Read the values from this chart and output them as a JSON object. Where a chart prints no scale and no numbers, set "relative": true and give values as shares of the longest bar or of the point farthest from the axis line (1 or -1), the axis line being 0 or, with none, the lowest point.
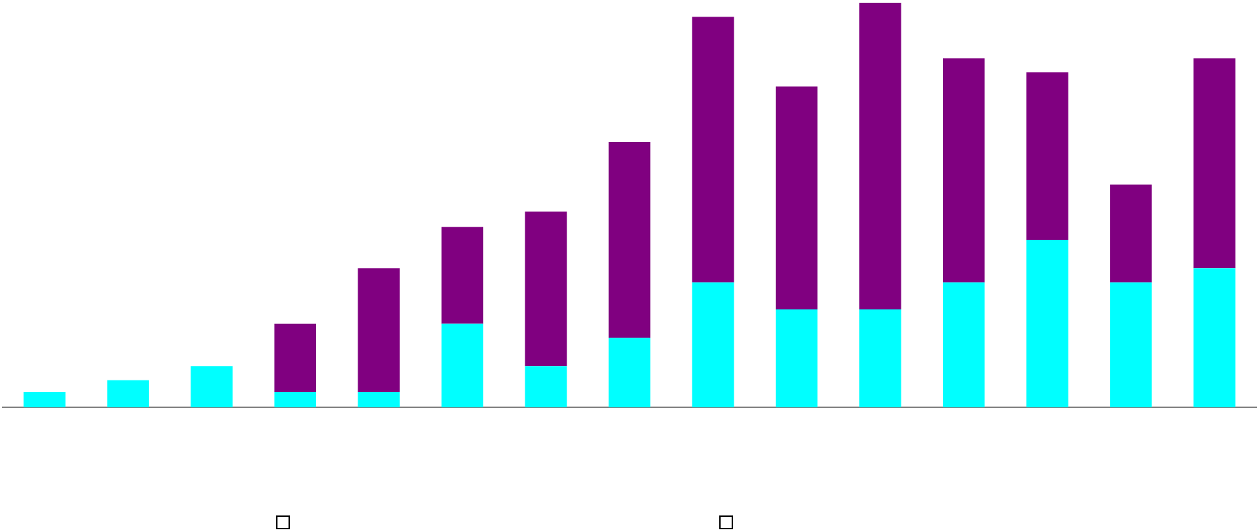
{
  "chart_data": {
    "type": "bar",
    "relative": true,
    "stacked": true,
    "legend": false,
    "grid": false,
    "categories": [
      null,
      null,
      null,
      null,
      null,
      null,
      null,
      null,
      null,
      null,
      null,
      null,
      null,
      null,
      null
    ],
    "series": [
      {
        "color": "#00ffff",
        "values": [
          0.038,
          0.067,
          0.102,
          0.038,
          0.038,
          0.207,
          0.102,
          0.172,
          0.309,
          0.242,
          0.242,
          0.309,
          0.414,
          0.309,
          0.344
        ]
      },
      {
        "color": "#800080",
        "values": [
          null,
          null,
          null,
          0.169,
          0.306,
          0.239,
          0.382,
          0.484,
          0.656,
          0.551,
          0.758,
          0.554,
          0.414,
          0.242,
          0.519
        ]
      }
    ]
  }
}
